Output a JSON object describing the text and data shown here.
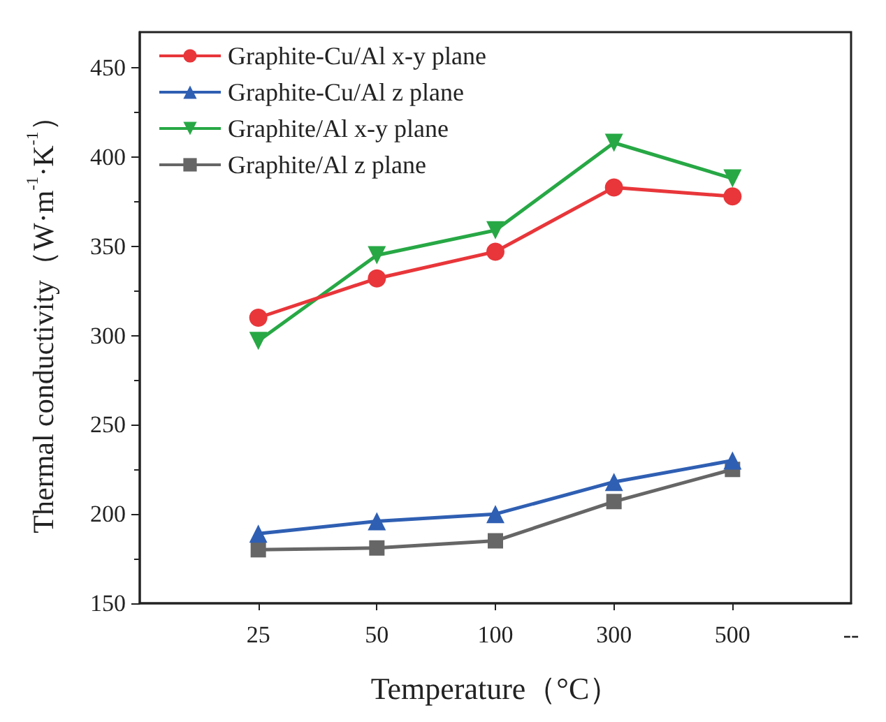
{
  "chart_data": {
    "type": "line",
    "xlabel": "Temperature（°C）",
    "ylabel": "Thermal conductivity（W·m$^{-1}$·K$^{-1}$）",
    "categories": [
      "25",
      "50",
      "100",
      "300",
      "500",
      "--"
    ],
    "series": [
      {
        "name": "Graphite-Cu/Al x-y plane",
        "color": "#e8363a",
        "marker": "circle",
        "values": [
          310,
          332,
          347,
          383,
          378,
          null
        ]
      },
      {
        "name": "Graphite-Cu/Al z plane",
        "color": "#2f5fb3",
        "marker": "triangle",
        "values": [
          189,
          196,
          200,
          218,
          230,
          null
        ]
      },
      {
        "name": "Graphite/Al x-y plane",
        "color": "#27a845",
        "marker": "triangle-down",
        "values": [
          297,
          345,
          359,
          408,
          388,
          null
        ]
      },
      {
        "name": "Graphite/Al z plane",
        "color": "#666666",
        "marker": "square",
        "values": [
          180,
          181,
          185,
          207,
          225,
          null
        ]
      }
    ],
    "ylim": [
      150,
      470
    ],
    "yticks": [
      150,
      200,
      250,
      300,
      350,
      400,
      450
    ],
    "grid": false,
    "legend": "top left",
    "line_style": "solid"
  }
}
